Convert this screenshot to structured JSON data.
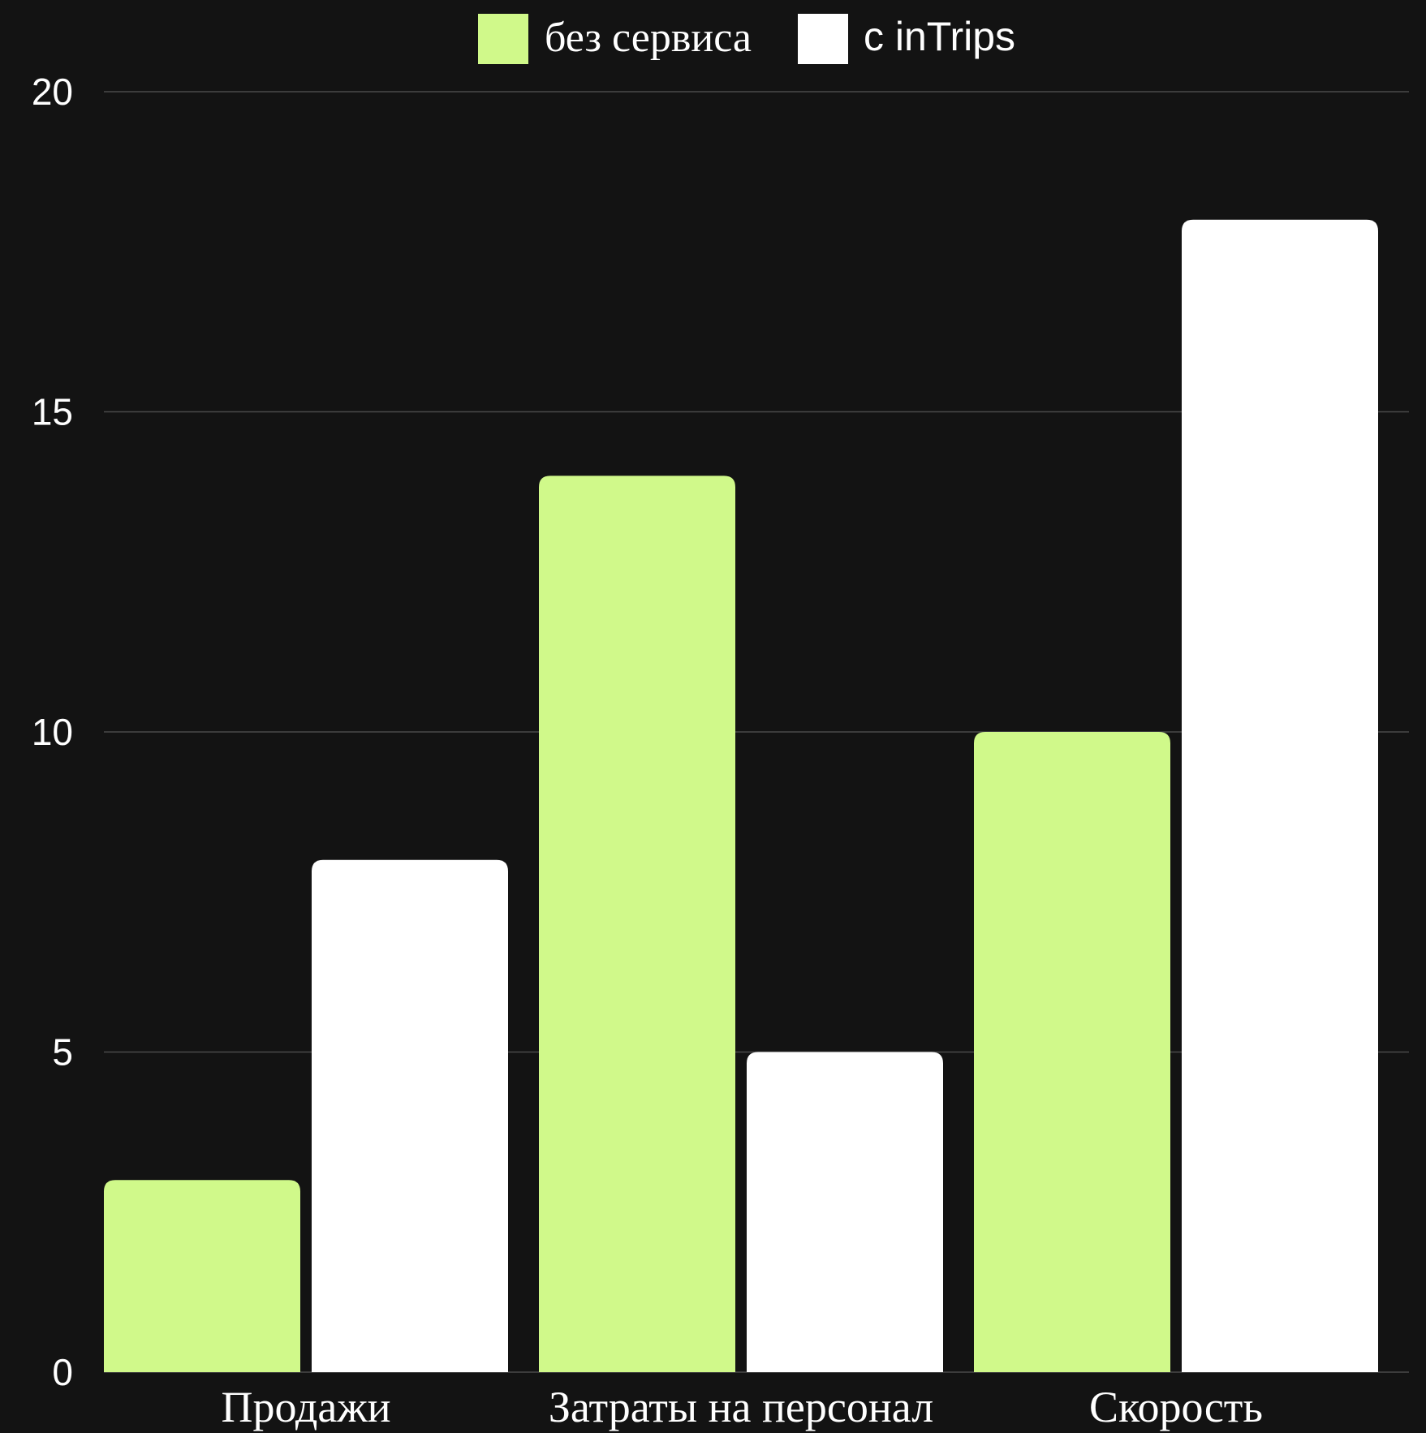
{
  "chart_data": {
    "type": "bar",
    "categories": [
      "Продажи",
      "Затраты на персонал",
      "Скорость"
    ],
    "series": [
      {
        "name": "без сервиса",
        "color": "#d0f98a",
        "values": [
          3,
          14,
          10
        ]
      },
      {
        "name": "с inTrips",
        "color": "#ffffff",
        "values": [
          8,
          5,
          18
        ]
      }
    ],
    "yticks": [
      "0",
      "5",
      "10",
      "15",
      "20"
    ],
    "ylim": [
      0,
      20
    ],
    "grid": true,
    "legend_position": "top-center"
  },
  "colors": {
    "background": "#131313",
    "gridline": "#4a4a4a",
    "text": "#ffffff"
  }
}
